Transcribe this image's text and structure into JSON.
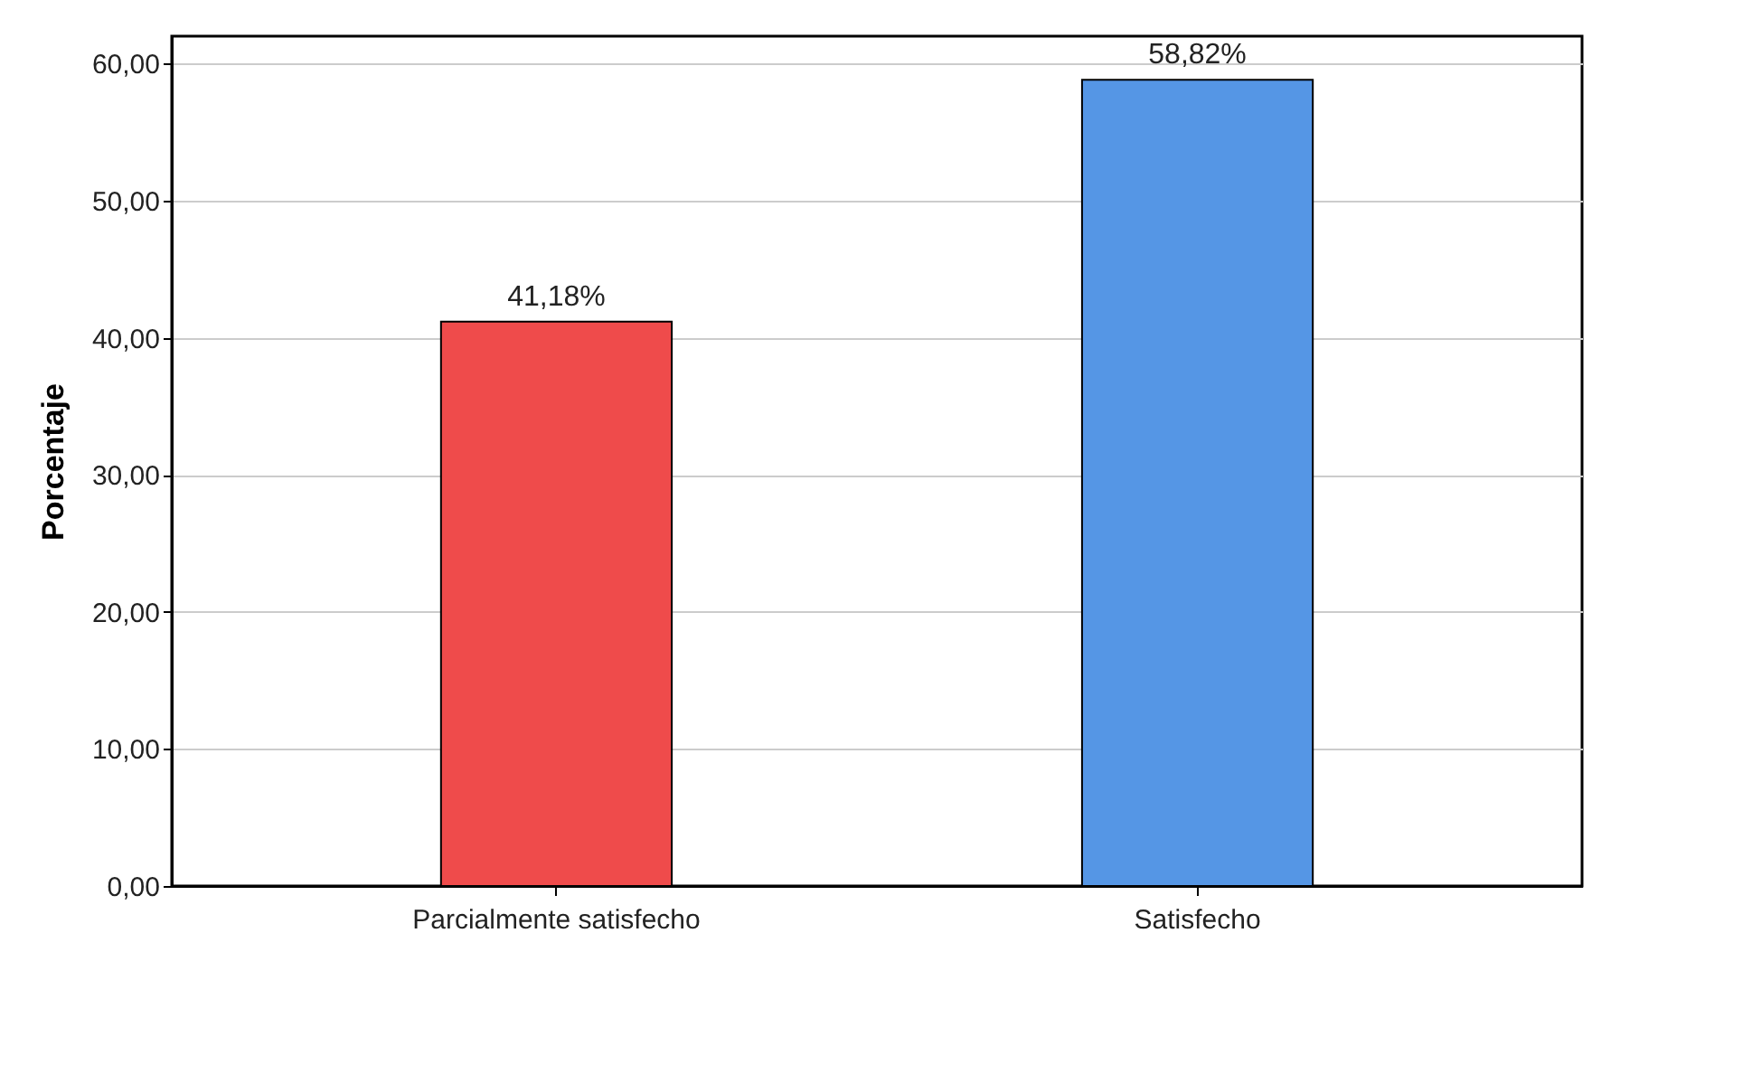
{
  "chart_data": {
    "type": "bar",
    "ylabel": "Porcentaje",
    "categories": [
      "Parcialmente satisfecho",
      "Satisfecho"
    ],
    "values": [
      41.18,
      58.82
    ],
    "colors": [
      "#ef4b4b",
      "#5596e5"
    ],
    "value_labels": [
      "41,18%",
      "58,82%"
    ],
    "ylim": [
      0,
      62
    ],
    "yticks": [
      {
        "value": 0,
        "label": "0,00"
      },
      {
        "value": 10,
        "label": "10,00"
      },
      {
        "value": 20,
        "label": "20,00"
      },
      {
        "value": 30,
        "label": "30,00"
      },
      {
        "value": 40,
        "label": "40,00"
      },
      {
        "value": 50,
        "label": "50,00"
      },
      {
        "value": 60,
        "label": "60,00"
      }
    ],
    "grid": "y"
  }
}
